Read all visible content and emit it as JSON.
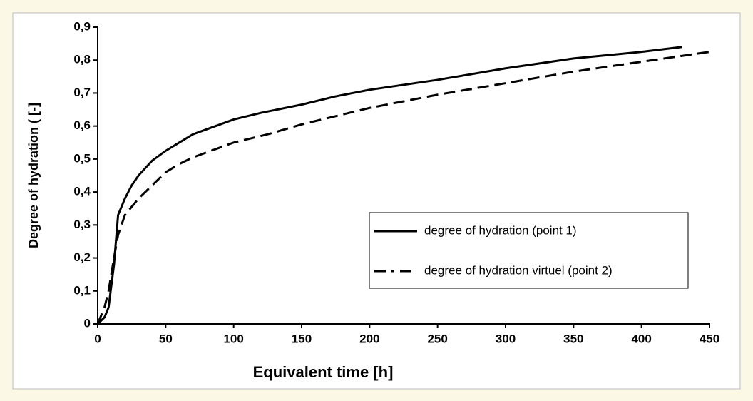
{
  "chart_data": {
    "type": "line",
    "xlabel": "Equivalent time [h]",
    "ylabel": "Degree of hydration ( [-]",
    "xlim": [
      0,
      450
    ],
    "xticks": [
      0,
      50,
      100,
      150,
      200,
      250,
      300,
      350,
      400,
      450
    ],
    "ylim": [
      0,
      0.9
    ],
    "yticks": [
      0,
      {
        "value": 0.1,
        "label": "0,1"
      },
      {
        "value": 0.2,
        "label": "0,2"
      },
      {
        "value": 0.3,
        "label": "0,3"
      },
      {
        "value": 0.4,
        "label": "0,4"
      },
      {
        "value": 0.5,
        "label": "0,5"
      },
      {
        "value": 0.6,
        "label": "0,6"
      },
      {
        "value": 0.7,
        "label": "0,7"
      },
      {
        "value": 0.8,
        "label": "0,8"
      },
      {
        "value": 0.9,
        "label": "0,9"
      }
    ],
    "series": [
      {
        "name": "degree of hydration (point 1)",
        "color": "#000000",
        "dash": false,
        "x": [
          0,
          5,
          8,
          12,
          15,
          20,
          25,
          30,
          40,
          50,
          60,
          70,
          80,
          100,
          120,
          150,
          175,
          200,
          250,
          300,
          350,
          400,
          430
        ],
        "values": [
          0,
          0.02,
          0.05,
          0.18,
          0.33,
          0.38,
          0.42,
          0.45,
          0.495,
          0.525,
          0.55,
          0.575,
          0.59,
          0.62,
          0.64,
          0.665,
          0.69,
          0.71,
          0.74,
          0.775,
          0.805,
          0.825,
          0.84
        ]
      },
      {
        "name": "degree of hydration virtuel (point 2)",
        "color": "#000000",
        "dash": true,
        "x": [
          0,
          5,
          8,
          12,
          15,
          20,
          30,
          40,
          50,
          60,
          70,
          80,
          100,
          125,
          150,
          175,
          200,
          250,
          300,
          350,
          400,
          450
        ],
        "values": [
          0,
          0.05,
          0.1,
          0.2,
          0.27,
          0.33,
          0.38,
          0.42,
          0.46,
          0.485,
          0.505,
          0.52,
          0.55,
          0.575,
          0.605,
          0.63,
          0.655,
          0.695,
          0.73,
          0.765,
          0.795,
          0.825
        ]
      }
    ]
  }
}
